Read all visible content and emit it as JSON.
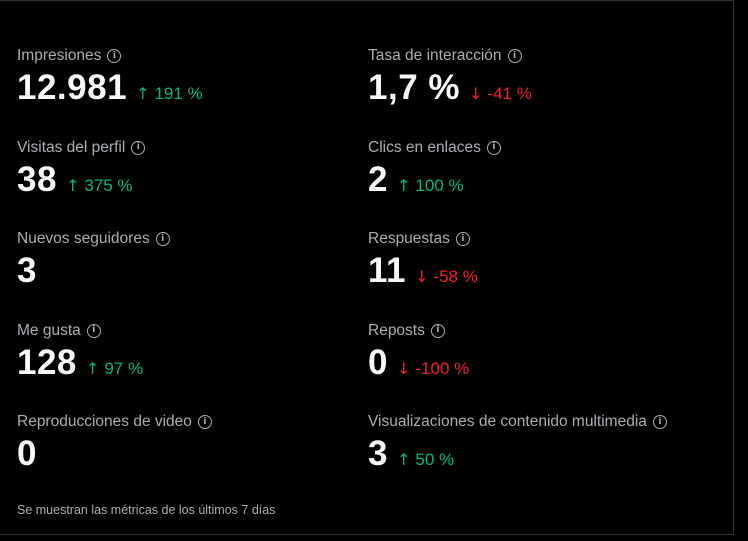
{
  "metrics": {
    "impressions": {
      "label": "Impresiones",
      "value": "12.981",
      "change": "191 %",
      "direction": "up"
    },
    "engagement_rate": {
      "label": "Tasa de interacción",
      "value": "1,7 %",
      "change": "-41 %",
      "direction": "down"
    },
    "profile_visits": {
      "label": "Visitas del perfil",
      "value": "38",
      "change": "375 %",
      "direction": "up"
    },
    "link_clicks": {
      "label": "Clics en enlaces",
      "value": "2",
      "change": "100 %",
      "direction": "up"
    },
    "new_followers": {
      "label": "Nuevos seguidores",
      "value": "3",
      "change": "",
      "direction": "none"
    },
    "replies": {
      "label": "Respuestas",
      "value": "11",
      "change": "-58 %",
      "direction": "down"
    },
    "likes": {
      "label": "Me gusta",
      "value": "128",
      "change": "97 %",
      "direction": "up"
    },
    "reposts": {
      "label": "Reposts",
      "value": "0",
      "change": "-100 %",
      "direction": "down"
    },
    "video_views": {
      "label": "Reproducciones de video",
      "value": "0",
      "change": "",
      "direction": "none"
    },
    "media_views": {
      "label": "Visualizaciones de contenido multimedia",
      "value": "3",
      "change": "50 %",
      "direction": "up"
    }
  },
  "icons": {
    "info": "info-icon",
    "up": "arrow-up-icon",
    "down": "arrow-down-icon"
  },
  "colors": {
    "positive": "#00ba7c",
    "negative": "#f4212e",
    "label": "#a9aeb3",
    "value": "#f7f9f9",
    "background": "#000000"
  },
  "footer": {
    "text": "Se muestran las métricas de los últimos 7 días"
  }
}
